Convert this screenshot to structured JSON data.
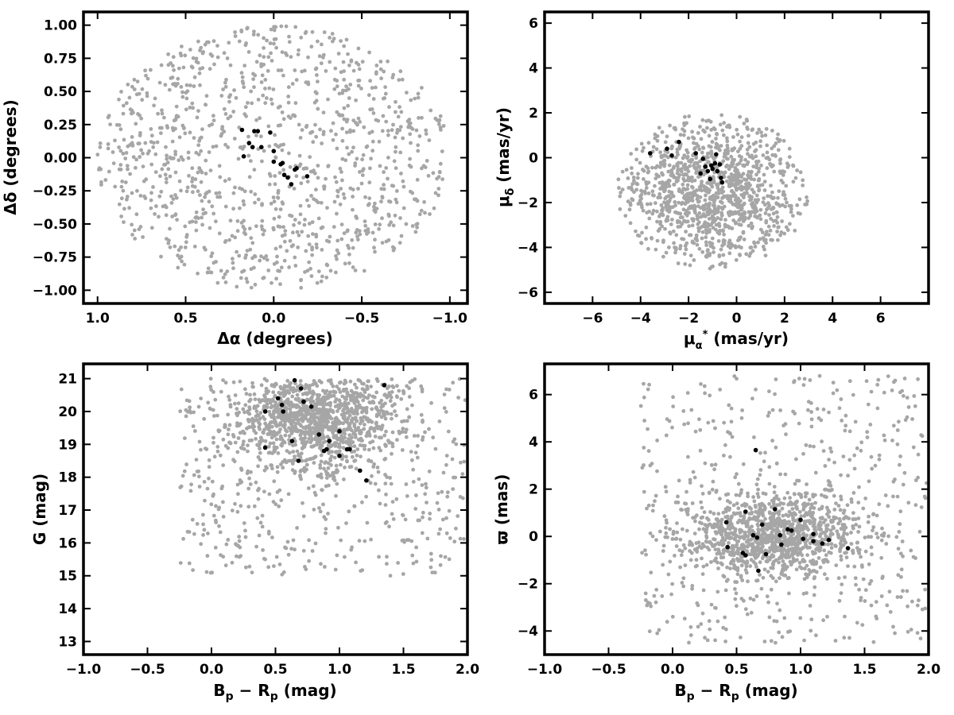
{
  "colors": {
    "background_points": "#a6a6a6",
    "member_points": "#000000",
    "frame": "#000000"
  },
  "chart_data": [
    {
      "id": "position",
      "type": "scatter",
      "xlabel": "Δα (degrees)",
      "ylabel": "Δδ (degrees)",
      "xlim": [
        1.08,
        -1.1
      ],
      "ylim": [
        -1.1,
        1.1
      ],
      "xticks": [
        1.0,
        0.5,
        0.0,
        -0.5,
        -1.0
      ],
      "xtick_labels": [
        "1.0",
        "0.5",
        "0.0",
        "−0.5",
        "−1.0"
      ],
      "yticks": [
        1.0,
        0.75,
        0.5,
        0.25,
        0.0,
        -0.25,
        -0.5,
        -0.75,
        -1.0
      ],
      "ytick_labels": [
        "1.00",
        "0.75",
        "0.50",
        "0.25",
        "0.00",
        "−0.25",
        "−0.50",
        "−0.75",
        "−1.00"
      ],
      "background_field": {
        "distribution": "uniform disk",
        "center": [
          0,
          0
        ],
        "radius": 1.0,
        "count": 1100
      },
      "members": [
        [
          0.18,
          0.21
        ],
        [
          0.17,
          0.01
        ],
        [
          0.14,
          0.11
        ],
        [
          0.12,
          0.08
        ],
        [
          0.11,
          0.2
        ],
        [
          0.09,
          0.2
        ],
        [
          0.07,
          0.08
        ],
        [
          0.02,
          0.19
        ],
        [
          0.0,
          0.05
        ],
        [
          0.0,
          -0.03
        ],
        [
          -0.04,
          -0.05
        ],
        [
          -0.05,
          -0.04
        ],
        [
          -0.06,
          -0.13
        ],
        [
          -0.08,
          -0.15
        ],
        [
          -0.1,
          -0.2
        ],
        [
          -0.12,
          -0.09
        ],
        [
          -0.13,
          -0.08
        ],
        [
          -0.19,
          -0.14
        ]
      ]
    },
    {
      "id": "proper-motion",
      "type": "scatter",
      "xlabel": "μ*α (mas/yr)",
      "ylabel": "μδ (mas/yr)",
      "xlim": [
        -8,
        8
      ],
      "ylim": [
        -6.5,
        6.5
      ],
      "xticks": [
        -6,
        -4,
        -2,
        0,
        2,
        4,
        6
      ],
      "xtick_labels": [
        "−6",
        "−4",
        "−2",
        "0",
        "2",
        "4",
        "6"
      ],
      "yticks": [
        6,
        4,
        2,
        0,
        -2,
        -4,
        -6
      ],
      "ytick_labels": [
        "6",
        "4",
        "2",
        "0",
        "−2",
        "−4",
        "−6"
      ],
      "background_field": {
        "distribution": "clustered ellipse",
        "center": [
          -1.0,
          -1.5
        ],
        "x_sigma": 1.9,
        "y_sigma": 1.6,
        "x_range": [
          -5,
          5
        ],
        "y_range": [
          -5,
          4.2
        ],
        "count": 1500
      },
      "members": [
        [
          -3.6,
          0.2
        ],
        [
          -2.9,
          0.4
        ],
        [
          -2.7,
          0.1
        ],
        [
          -2.4,
          0.7
        ],
        [
          -1.7,
          0.2
        ],
        [
          -1.5,
          -0.7
        ],
        [
          -1.4,
          -0.05
        ],
        [
          -1.3,
          -0.4
        ],
        [
          -1.2,
          -0.6
        ],
        [
          -1.1,
          -0.95
        ],
        [
          -1.05,
          -0.35
        ],
        [
          -1.0,
          -0.5
        ],
        [
          -0.9,
          -0.25
        ],
        [
          -0.85,
          0.15
        ],
        [
          -0.8,
          -0.6
        ],
        [
          -0.7,
          -0.3
        ],
        [
          -0.65,
          -0.9
        ],
        [
          -0.6,
          -1.1
        ]
      ]
    },
    {
      "id": "color-magnitude",
      "type": "scatter",
      "xlabel": "Bp − Rp (mag)",
      "ylabel": "G (mag)",
      "xlim": [
        -1.0,
        2.0
      ],
      "ylim": [
        12.6,
        21.45
      ],
      "y_inverted": false,
      "xticks": [
        -1.0,
        -0.5,
        0.0,
        0.5,
        1.0,
        1.5,
        2.0
      ],
      "xtick_labels": [
        "−1.0",
        "−0.5",
        "0.0",
        "0.5",
        "1.0",
        "1.5",
        "2.0"
      ],
      "yticks": [
        21,
        20,
        19,
        18,
        17,
        16,
        15,
        14,
        13
      ],
      "ytick_labels": [
        "21",
        "20",
        "19",
        "18",
        "17",
        "16",
        "15",
        "14",
        "13"
      ],
      "background_field": {
        "distribution": "clustered, dense near (0.75, 20.2)",
        "center": [
          0.8,
          19.8
        ],
        "x_sigma": 0.32,
        "y_sigma": 0.75,
        "x_range": [
          -0.25,
          2.0
        ],
        "y_range": [
          15.0,
          21.0
        ],
        "count": 1600
      },
      "members": [
        [
          0.42,
          18.9
        ],
        [
          0.42,
          20.0
        ],
        [
          0.52,
          20.4
        ],
        [
          0.55,
          20.2
        ],
        [
          0.56,
          20.0
        ],
        [
          0.63,
          19.1
        ],
        [
          0.65,
          20.95
        ],
        [
          0.68,
          18.5
        ],
        [
          0.7,
          20.7
        ],
        [
          0.72,
          20.3
        ],
        [
          0.78,
          20.15
        ],
        [
          0.84,
          19.3
        ],
        [
          0.88,
          18.8
        ],
        [
          0.9,
          18.85
        ],
        [
          0.92,
          19.1
        ],
        [
          1.0,
          19.4
        ],
        [
          1.0,
          18.65
        ],
        [
          1.06,
          18.85
        ],
        [
          1.08,
          18.85
        ],
        [
          1.16,
          18.2
        ],
        [
          1.21,
          17.9
        ],
        [
          1.35,
          20.8
        ]
      ]
    },
    {
      "id": "parallax",
      "type": "scatter",
      "xlabel": "Bp − Rp (mag)",
      "ylabel": "ϖ (mas)",
      "xlim": [
        -1.0,
        2.0
      ],
      "ylim": [
        -5.0,
        7.3
      ],
      "xticks": [
        -1.0,
        -0.5,
        0.0,
        0.5,
        1.0,
        1.5,
        2.0
      ],
      "xtick_labels": [
        "−1.0",
        "−0.5",
        "0.0",
        "0.5",
        "1.0",
        "1.5",
        "2.0"
      ],
      "yticks": [
        6,
        4,
        2,
        0,
        -2,
        -4
      ],
      "ytick_labels": [
        "6",
        "4",
        "2",
        "0",
        "−2",
        "−4"
      ],
      "background_field": {
        "distribution": "clustered band",
        "center": [
          0.8,
          0.1
        ],
        "x_sigma": 0.35,
        "y_sigma": 0.9,
        "x_range": [
          -0.25,
          2.0
        ],
        "y_range": [
          -4.5,
          6.8
        ],
        "count": 1600
      },
      "members": [
        [
          0.42,
          0.6
        ],
        [
          0.43,
          -0.45
        ],
        [
          0.55,
          -0.7
        ],
        [
          0.57,
          -0.8
        ],
        [
          0.57,
          1.05
        ],
        [
          0.63,
          0.05
        ],
        [
          0.65,
          3.65
        ],
        [
          0.66,
          -0.05
        ],
        [
          0.67,
          -1.45
        ],
        [
          0.7,
          0.5
        ],
        [
          0.73,
          -0.75
        ],
        [
          0.8,
          1.15
        ],
        [
          0.84,
          0.05
        ],
        [
          0.85,
          -0.35
        ],
        [
          0.9,
          0.3
        ],
        [
          0.93,
          0.25
        ],
        [
          1.0,
          0.7
        ],
        [
          1.02,
          -0.1
        ],
        [
          1.1,
          -0.2
        ],
        [
          1.1,
          0.1
        ],
        [
          1.17,
          -0.3
        ],
        [
          1.22,
          -0.15
        ],
        [
          1.37,
          -0.5
        ]
      ]
    }
  ]
}
